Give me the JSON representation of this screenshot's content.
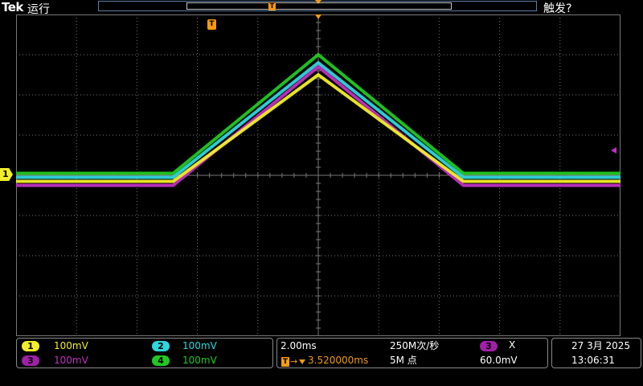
{
  "header": {
    "brand": "Tek",
    "run_status": "运行",
    "trigger_status": "触发?",
    "trigger_marker": "T"
  },
  "screen": {
    "ch1_marker": "1",
    "trigger_time_marker": "T"
  },
  "channels": [
    {
      "id": "1",
      "scale": "100mV",
      "color": "#f2ef2a"
    },
    {
      "id": "2",
      "scale": "100mV",
      "color": "#2ed6dd"
    },
    {
      "id": "3",
      "scale": "100mV",
      "color": "#c030c0"
    },
    {
      "id": "4",
      "scale": "100mV",
      "color": "#22c822"
    }
  ],
  "horizontal": {
    "time_per_div": "2.00ms",
    "sample_rate": "250M次/秒",
    "trigger_delay": "3.520000ms",
    "record_length": "5M 点",
    "trigger_icon": "T",
    "trigger_arrow": "→"
  },
  "trigger": {
    "source": "3",
    "slope_icon": "X",
    "level": "60.0mV"
  },
  "datetime": {
    "date": "27 3月 2025",
    "time": "13:06:31"
  },
  "colors": {
    "ch1": "#f2ef2a",
    "ch2": "#2ed6dd",
    "ch3": "#c030c0",
    "ch4": "#22c822",
    "trigger": "#f59a12",
    "grid": "#777777"
  },
  "chart_data": {
    "type": "line",
    "xlabel": "",
    "ylabel": "",
    "grid": true,
    "divisions": {
      "x": 10,
      "y": 8
    },
    "x_div": [
      -5,
      -2.4,
      0,
      2.4,
      5
    ],
    "series": [
      {
        "color": "#22c822",
        "y_div": [
          0.05,
          0.05,
          3.0,
          0.05,
          0.05
        ]
      },
      {
        "color": "#2ed6dd",
        "y_div": [
          -0.05,
          -0.05,
          2.8,
          -0.05,
          -0.05
        ]
      },
      {
        "color": "#c030c0",
        "y_div": [
          -0.25,
          -0.25,
          2.7,
          -0.25,
          -0.25
        ]
      },
      {
        "color": "#f2ef2a",
        "y_div": [
          -0.15,
          -0.15,
          2.5,
          -0.15,
          -0.15
        ]
      }
    ]
  }
}
